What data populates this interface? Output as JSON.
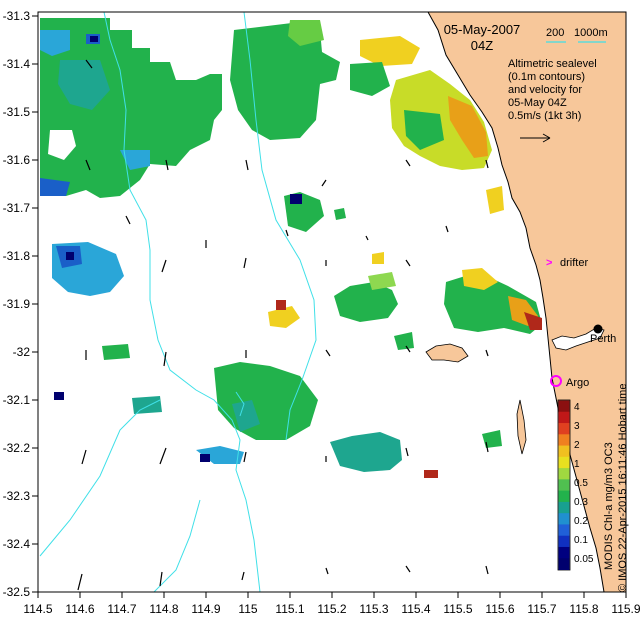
{
  "title": {
    "date": "05-May-2007",
    "time": "04Z"
  },
  "depth_legend": {
    "label_200": "200",
    "label_1000": "1000m"
  },
  "sealevel_note": {
    "line1": "Altimetric sealevel",
    "line2": "(0.1m contours)",
    "line3": "and velocity for",
    "line4": "05-May 04Z",
    "line5": "0.5m/s (1kt 3h)"
  },
  "markers": {
    "drifter": "drifter",
    "argo": "Argo",
    "city": "Perth",
    "city_truncated": "Perth"
  },
  "axes": {
    "x_ticks": [
      "114.5",
      "114.6",
      "114.7",
      "114.8",
      "114.9",
      "115",
      "115.1",
      "115.2",
      "115.3",
      "115.4",
      "115.5",
      "115.6",
      "115.7",
      "115.8",
      "115.9"
    ],
    "y_ticks": [
      "-31.3",
      "-31.4",
      "-31.5",
      "-31.6",
      "-31.7",
      "-31.8",
      "-31.9",
      "-32",
      "-32.1",
      "-32.2",
      "-32.3",
      "-32.4",
      "-32.5"
    ]
  },
  "colorbar": {
    "labels": [
      "4",
      "3",
      "2",
      "1",
      "0.5",
      "0.3",
      "0.2",
      "0.1",
      "0.05"
    ],
    "caption": "MODIS Chl-a mg/m3 OC3",
    "credit": "© IMOS 22-Apr-2015 16:11:46 Hobart time"
  },
  "colors": {
    "land": "#f7c79a",
    "contour": "#40e0e8",
    "marker_magenta": "#ff00ff",
    "chl_low": "#00006e",
    "chl_mid": "#22b24c",
    "chl_high": "#8b1010"
  }
}
